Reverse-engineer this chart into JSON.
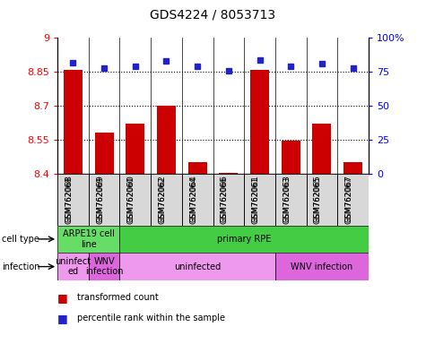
{
  "title": "GDS4224 / 8053713",
  "samples": [
    "GSM762068",
    "GSM762069",
    "GSM762060",
    "GSM762062",
    "GSM762064",
    "GSM762066",
    "GSM762061",
    "GSM762063",
    "GSM762065",
    "GSM762067"
  ],
  "transformed_counts": [
    8.86,
    8.58,
    8.62,
    8.7,
    8.45,
    8.405,
    8.86,
    8.545,
    8.62,
    8.45
  ],
  "percentile_ranks": [
    82,
    78,
    79,
    83,
    79,
    76,
    84,
    79,
    81,
    78
  ],
  "ylim_left": [
    8.4,
    9.0
  ],
  "ylim_right": [
    0,
    100
  ],
  "yticks_left": [
    8.4,
    8.55,
    8.7,
    8.85,
    9.0
  ],
  "yticks_right": [
    0,
    25,
    50,
    75,
    100
  ],
  "ytick_labels_left": [
    "8.4",
    "8.55",
    "8.7",
    "8.85",
    "9"
  ],
  "ytick_labels_right": [
    "0",
    "25",
    "50",
    "75",
    "100%"
  ],
  "bar_color": "#cc0000",
  "dot_color": "#2222cc",
  "cell_type_groups": [
    {
      "label": "ARPE19 cell\nline",
      "start": 0,
      "end": 2,
      "color": "#66dd66"
    },
    {
      "label": "primary RPE",
      "start": 2,
      "end": 10,
      "color": "#44cc44"
    }
  ],
  "infection_groups": [
    {
      "label": "uninfect\ned",
      "start": 0,
      "end": 1,
      "color": "#ee99ee"
    },
    {
      "label": "WNV\ninfection",
      "start": 1,
      "end": 2,
      "color": "#dd66dd"
    },
    {
      "label": "uninfected",
      "start": 2,
      "end": 7,
      "color": "#ee99ee"
    },
    {
      "label": "WNV infection",
      "start": 7,
      "end": 10,
      "color": "#dd66dd"
    }
  ],
  "legend_label_count": "transformed count",
  "legend_label_rank": "percentile rank within the sample",
  "cell_type_label": "cell type",
  "infection_label": "infection"
}
